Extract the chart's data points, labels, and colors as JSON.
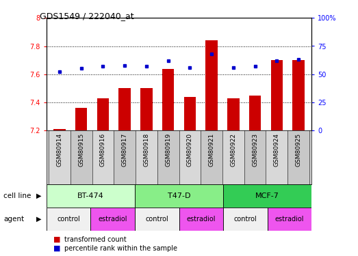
{
  "title": "GDS1549 / 222040_at",
  "samples": [
    "GSM80914",
    "GSM80915",
    "GSM80916",
    "GSM80917",
    "GSM80918",
    "GSM80919",
    "GSM80920",
    "GSM80921",
    "GSM80922",
    "GSM80923",
    "GSM80924",
    "GSM80925"
  ],
  "red_values": [
    7.21,
    7.36,
    7.43,
    7.5,
    7.5,
    7.64,
    7.44,
    7.84,
    7.43,
    7.45,
    7.7,
    7.7
  ],
  "blue_values": [
    52,
    55,
    57,
    58,
    57,
    62,
    56,
    68,
    56,
    57,
    62,
    63
  ],
  "ylim_left": [
    7.2,
    8.0
  ],
  "ylim_right": [
    0,
    100
  ],
  "yticks_left": [
    7.2,
    7.4,
    7.6,
    7.8,
    8.0
  ],
  "ytick_labels_left": [
    "7.2",
    "7.4",
    "7.6",
    "7.8",
    "8"
  ],
  "yticks_right": [
    0,
    25,
    50,
    75,
    100
  ],
  "ytick_labels_right": [
    "0",
    "25",
    "50",
    "75",
    "100%"
  ],
  "cell_lines": [
    {
      "label": "BT-474",
      "start": 0,
      "end": 4,
      "color": "#ccffcc"
    },
    {
      "label": "T47-D",
      "start": 4,
      "end": 8,
      "color": "#88ee88"
    },
    {
      "label": "MCF-7",
      "start": 8,
      "end": 12,
      "color": "#33cc55"
    }
  ],
  "agents": [
    {
      "label": "control",
      "start": 0,
      "end": 2,
      "color": "#f0f0f0"
    },
    {
      "label": "estradiol",
      "start": 2,
      "end": 4,
      "color": "#ee55ee"
    },
    {
      "label": "control",
      "start": 4,
      "end": 6,
      "color": "#f0f0f0"
    },
    {
      "label": "estradiol",
      "start": 6,
      "end": 8,
      "color": "#ee55ee"
    },
    {
      "label": "control",
      "start": 8,
      "end": 10,
      "color": "#f0f0f0"
    },
    {
      "label": "estradiol",
      "start": 10,
      "end": 12,
      "color": "#ee55ee"
    }
  ],
  "bar_color": "#cc0000",
  "dot_color": "#0000cc",
  "bar_width": 0.55,
  "xticklabel_bg": "#d0d0d0",
  "plot_bg_color": "white",
  "fig_bg_color": "white"
}
